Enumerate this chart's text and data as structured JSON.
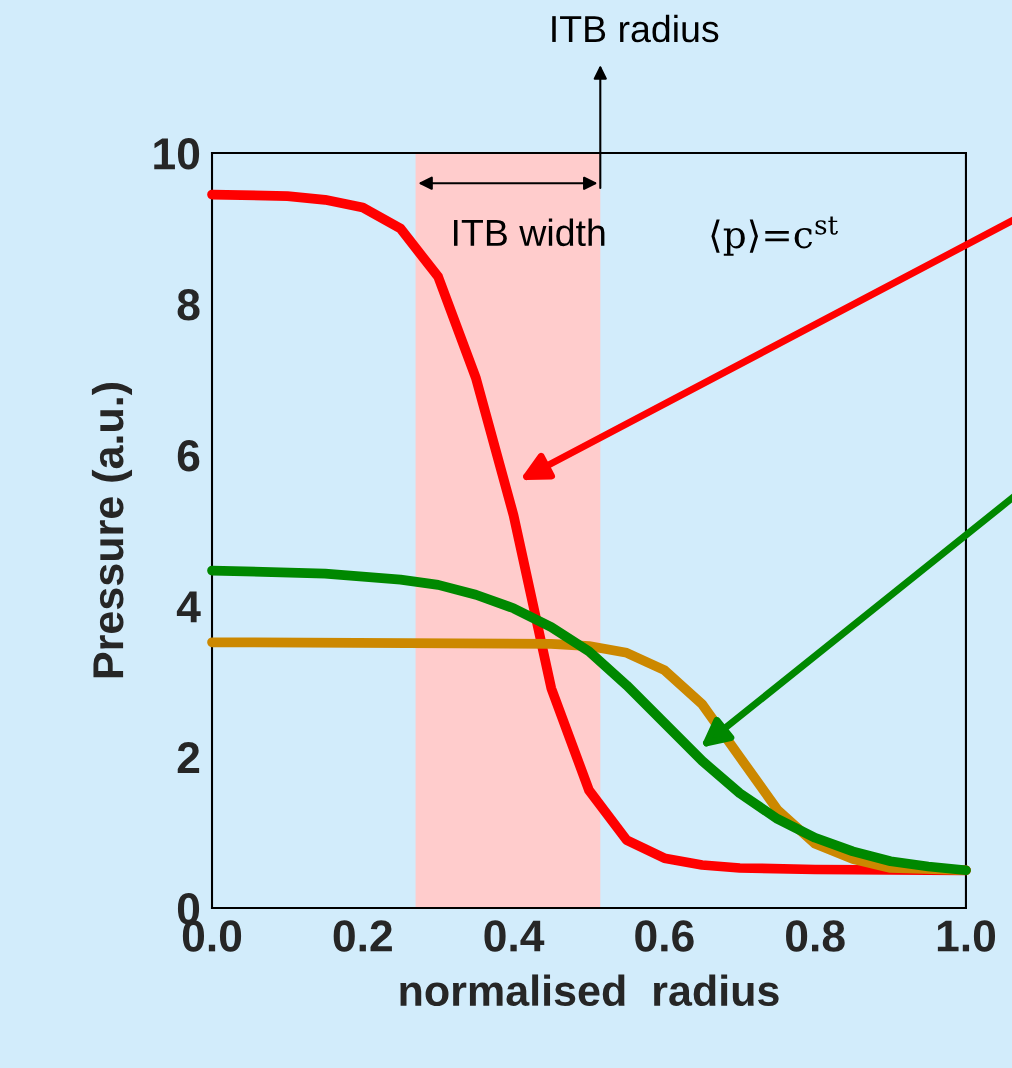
{
  "chart_data": {
    "type": "line",
    "xlabel": "normalised  radius",
    "ylabel": "Pressure (a.u.)",
    "xlim": [
      0,
      1
    ],
    "ylim": [
      0,
      10
    ],
    "xticks": [
      {
        "value": 0,
        "label": "0.0"
      },
      {
        "value": 0.2,
        "label": "0.2"
      },
      {
        "value": 0.4,
        "label": "0.4"
      },
      {
        "value": 0.6,
        "label": "0.6"
      },
      {
        "value": 0.8,
        "label": "0.8"
      },
      {
        "value": 1,
        "label": "1.0"
      }
    ],
    "yticks": [
      0,
      2,
      4,
      6,
      8,
      10
    ],
    "grid": false,
    "legend": false,
    "marker": "none",
    "line_style": "solid",
    "bands": [
      {
        "axis": "x",
        "from": 0.27,
        "to": 0.515,
        "color": "#ffcccc"
      }
    ],
    "annotations": [
      "ITB radius",
      "ITB width",
      "⟨p⟩=c$^{st}$"
    ],
    "series": [
      {
        "color": "#ff0000",
        "x": [
          0,
          0.1,
          0.15,
          0.2,
          0.25,
          0.3,
          0.35,
          0.4,
          0.45,
          0.5,
          0.55,
          0.6,
          0.65,
          0.7,
          0.8,
          1.0
        ],
        "values": [
          9.45,
          9.43,
          9.38,
          9.28,
          9.0,
          8.36,
          7.02,
          5.2,
          2.91,
          1.56,
          0.9,
          0.66,
          0.57,
          0.53,
          0.51,
          0.5
        ]
      },
      {
        "color": "#cc8800",
        "x": [
          0,
          0.45,
          0.5,
          0.55,
          0.6,
          0.65,
          0.7,
          0.75,
          0.8,
          0.85,
          0.9,
          1.0
        ],
        "values": [
          3.52,
          3.5,
          3.47,
          3.38,
          3.15,
          2.7,
          2.0,
          1.3,
          0.85,
          0.65,
          0.53,
          0.5
        ]
      },
      {
        "color": "#008800",
        "x": [
          0,
          0.15,
          0.25,
          0.3,
          0.35,
          0.4,
          0.45,
          0.5,
          0.55,
          0.6,
          0.65,
          0.7,
          0.75,
          0.8,
          0.85,
          0.9,
          0.95,
          1.0
        ],
        "values": [
          4.47,
          4.43,
          4.35,
          4.28,
          4.15,
          3.97,
          3.72,
          3.4,
          2.95,
          2.45,
          1.95,
          1.52,
          1.18,
          0.93,
          0.75,
          0.62,
          0.55,
          0.5
        ]
      }
    ]
  }
}
